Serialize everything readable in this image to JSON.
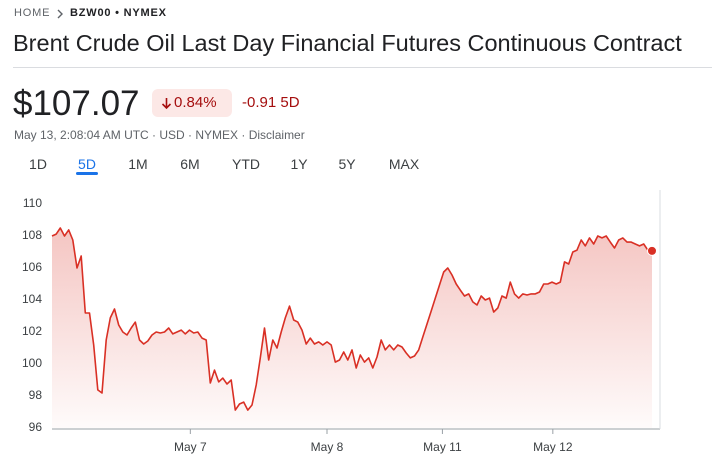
{
  "breadcrumb": {
    "home": "HOME",
    "symbol": "BZW00 • NYMEX"
  },
  "title": "Brent Crude Oil Last Day Financial Futures Continuous Contract",
  "quote": {
    "price": "$107.07",
    "change_percent": "0.84%",
    "change_period": "-0.91 5D",
    "info": "May 13, 2:08:04 AM UTC · USD · NYMEX · Disclaimer"
  },
  "tabs": {
    "items": [
      "1D",
      "5D",
      "1M",
      "6M",
      "YTD",
      "1Y",
      "5Y",
      "MAX"
    ],
    "selected": 1
  },
  "chart_data": {
    "type": "line",
    "series": [
      {
        "color": "#d93025",
        "values": [
          108.0,
          108.12,
          108.5,
          108.0,
          108.38,
          107.75,
          106.0,
          106.75,
          103.19,
          103.19,
          101.19,
          98.38,
          98.19,
          101.5,
          102.88,
          103.44,
          102.44,
          102.0,
          101.81,
          102.25,
          102.62,
          101.5,
          101.25,
          101.44,
          101.81,
          102.0,
          101.94,
          102.0,
          102.25,
          101.88,
          102.0,
          102.12,
          101.88,
          102.12,
          101.94,
          102.0,
          101.62,
          101.5,
          98.81,
          99.62,
          98.88,
          99.12,
          98.75,
          99.0,
          97.12,
          97.5,
          97.62,
          97.12,
          97.44,
          98.69,
          100.38,
          102.25,
          100.25,
          101.5,
          101.0,
          102.0,
          102.88,
          103.62,
          102.75,
          102.62,
          102.12,
          101.25,
          101.62,
          101.25,
          101.38,
          101.19,
          101.38,
          101.19,
          100.12,
          100.25,
          100.75,
          100.25,
          100.88,
          99.75,
          100.56,
          100.12,
          100.38,
          99.75,
          100.44,
          101.5,
          100.88,
          101.19,
          100.88,
          101.19,
          101.06,
          100.69,
          100.38,
          100.5,
          100.88,
          101.69,
          102.5,
          103.31,
          104.12,
          104.94,
          105.75,
          106.0,
          105.56,
          105.0,
          104.62,
          104.25,
          104.38,
          103.88,
          103.69,
          104.25,
          104.0,
          104.12,
          103.25,
          103.5,
          104.25,
          104.12,
          105.12,
          104.38,
          104.12,
          104.38,
          104.31,
          104.38,
          104.38,
          104.5,
          105.0,
          105.0,
          105.12,
          105.0,
          105.12,
          106.38,
          106.25,
          107.0,
          107.12,
          107.75,
          107.38,
          107.88,
          107.5,
          108.0,
          107.88,
          108.0,
          107.62,
          107.25,
          107.75,
          107.88,
          107.62,
          107.62,
          107.5,
          107.38,
          107.5,
          107.12,
          107.07
        ]
      }
    ],
    "xlim": [
      0,
      144
    ],
    "xticks": [
      {
        "value": 33.2,
        "label": "May 7"
      },
      {
        "value": 66,
        "label": "May 8"
      },
      {
        "value": 93.7,
        "label": "May 11"
      },
      {
        "value": 120.2,
        "label": "May 12"
      }
    ],
    "ylim": [
      96,
      110
    ],
    "yticks": [
      96,
      98,
      100,
      102,
      104,
      106,
      108,
      110
    ]
  }
}
